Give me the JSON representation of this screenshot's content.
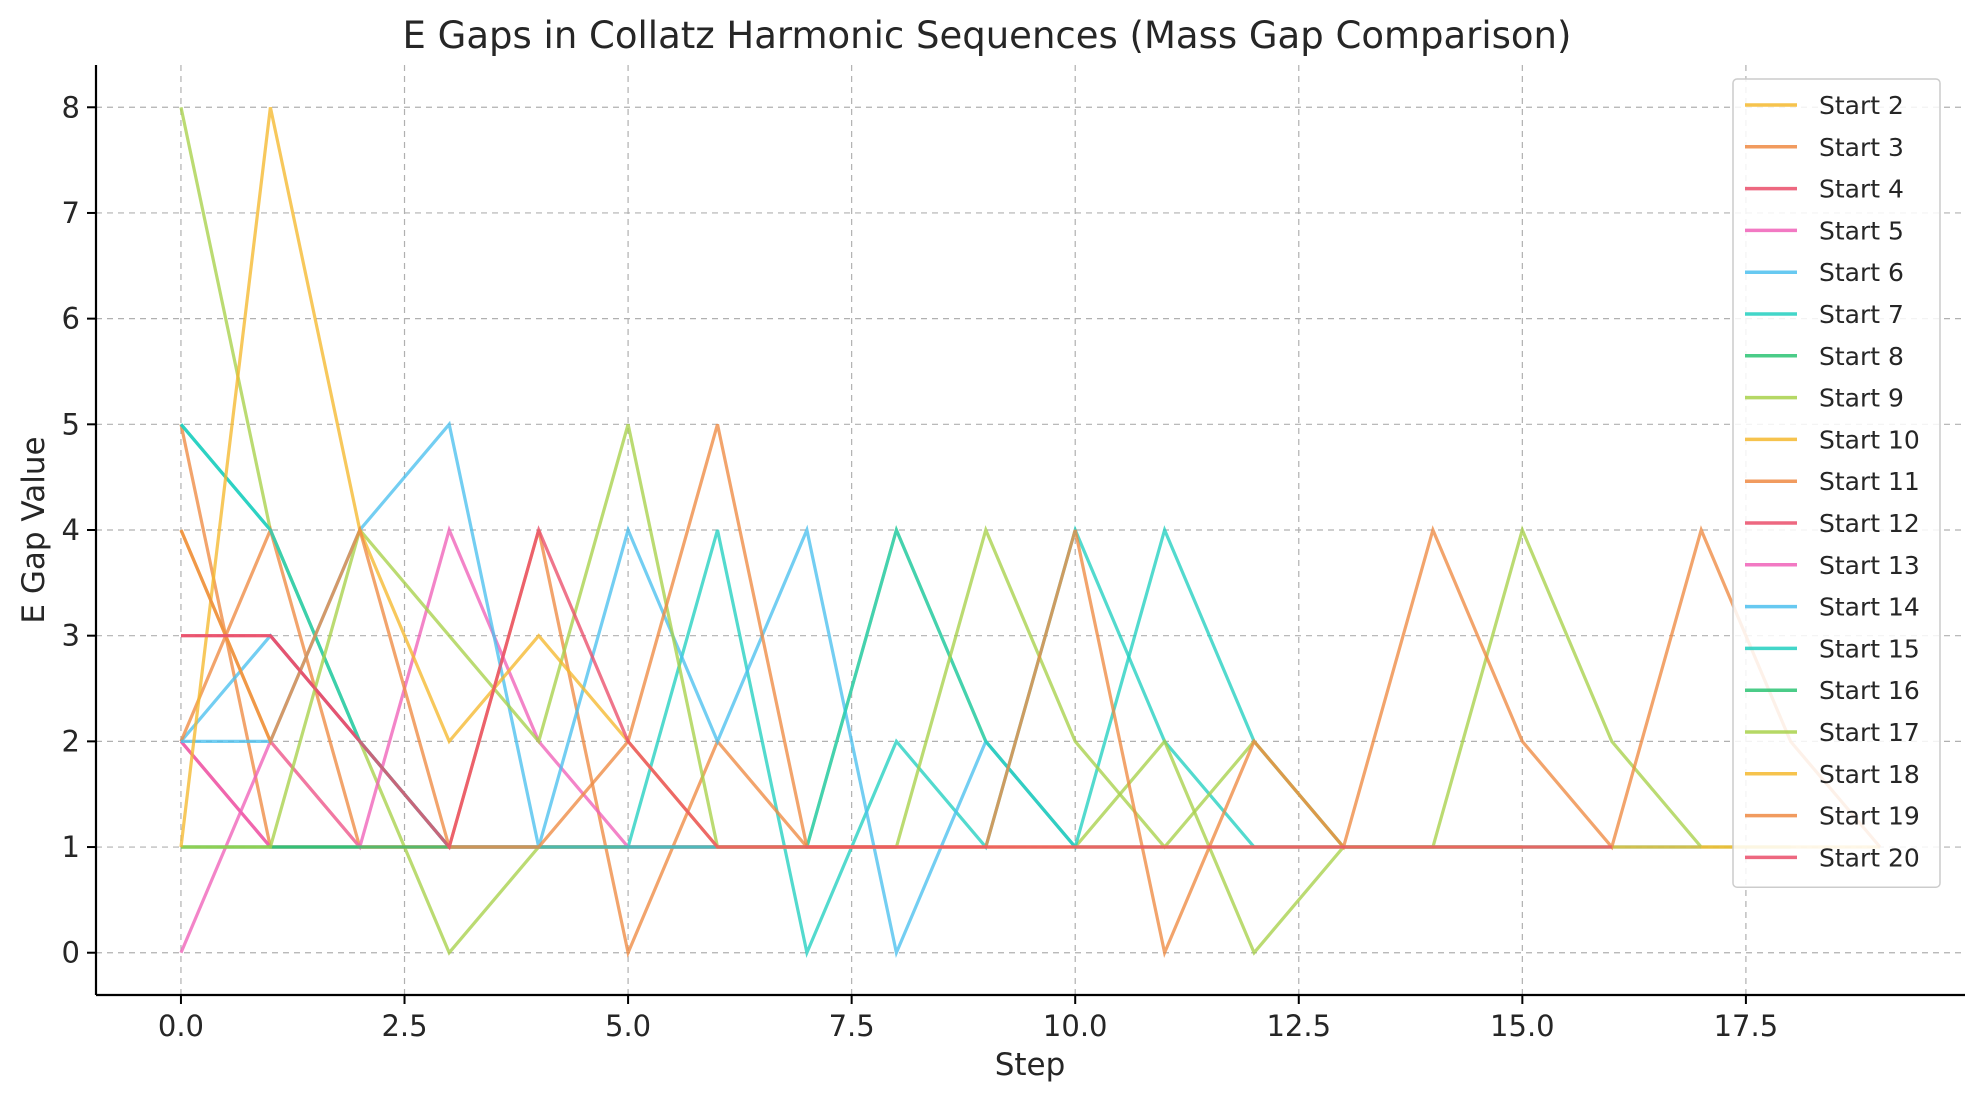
{
  "chart_data": {
    "type": "line",
    "title": "E Gaps in Collatz Harmonic Sequences (Mass Gap Comparison)",
    "xlabel": "Step",
    "ylabel": "E Gap Value",
    "xlim": [
      -0.95,
      19.95
    ],
    "ylim": [
      -0.4,
      8.4
    ],
    "xticks": [
      0,
      2.5,
      5,
      7.5,
      10,
      12.5,
      15,
      17.5
    ],
    "xtick_labels": [
      "0.0",
      "2.5",
      "5.0",
      "7.5",
      "10.0",
      "12.5",
      "15.0",
      "17.5"
    ],
    "yticks": [
      0,
      1,
      2,
      3,
      4,
      5,
      6,
      7,
      8
    ],
    "ytick_labels": [
      "0",
      "1",
      "2",
      "3",
      "4",
      "5",
      "6",
      "7",
      "8"
    ],
    "grid": true,
    "legend_position": "top-right",
    "series": [
      {
        "name": "Start 2",
        "color": "#f5b82e",
        "values": [
          0
        ]
      },
      {
        "name": "Start 3",
        "color": "#ee8a43",
        "values": [
          5,
          1,
          1,
          1,
          1,
          1,
          1
        ]
      },
      {
        "name": "Start 4",
        "color": "#ea4e6a",
        "values": [
          2,
          1
        ]
      },
      {
        "name": "Start 5",
        "color": "#f062b8",
        "values": [
          2,
          1,
          1,
          1
        ]
      },
      {
        "name": "Start 6",
        "color": "#4cc0ee",
        "values": [
          2,
          3,
          2,
          1,
          1,
          1,
          1,
          1
        ]
      },
      {
        "name": "Start 7",
        "color": "#22cfc0",
        "values": [
          5,
          4,
          2,
          1,
          1,
          1,
          4,
          0,
          2,
          1,
          4,
          2,
          1,
          1,
          1,
          1
        ]
      },
      {
        "name": "Start 8",
        "color": "#2cc373",
        "values": [
          1,
          1,
          1
        ]
      },
      {
        "name": "Start 9",
        "color": "#a8d14a",
        "values": [
          8,
          4,
          2,
          0,
          1,
          1,
          1,
          1,
          4,
          2,
          1,
          2,
          0,
          1,
          1,
          4,
          2,
          1,
          1
        ]
      },
      {
        "name": "Start 10",
        "color": "#f5b82e",
        "values": [
          4,
          2,
          1,
          1,
          1,
          1
        ]
      },
      {
        "name": "Start 11",
        "color": "#ee8a43",
        "values": [
          2,
          4,
          1,
          1,
          4,
          0,
          2,
          1,
          1,
          1,
          1,
          1,
          1,
          1
        ]
      },
      {
        "name": "Start 12",
        "color": "#ea4e6a",
        "values": [
          3,
          3,
          2,
          1,
          1,
          1,
          1,
          1,
          1
        ]
      },
      {
        "name": "Start 13",
        "color": "#f062b8",
        "values": [
          0,
          2,
          1,
          4,
          2,
          1,
          1,
          1,
          1
        ]
      },
      {
        "name": "Start 14",
        "color": "#4cc0ee",
        "values": [
          2,
          2,
          4,
          5,
          1,
          4,
          2,
          4,
          0,
          2,
          1,
          1,
          1,
          1,
          1,
          1,
          1
        ]
      },
      {
        "name": "Start 15",
        "color": "#22cfc0",
        "values": [
          5,
          4,
          2,
          1,
          1,
          1,
          1,
          1,
          4,
          2,
          1,
          4,
          2,
          1,
          1,
          1,
          1,
          1
        ]
      },
      {
        "name": "Start 16",
        "color": "#2cc373",
        "values": [
          1,
          1,
          1,
          1
        ]
      },
      {
        "name": "Start 17",
        "color": "#a8d14a",
        "values": [
          1,
          1,
          4,
          3,
          2,
          5,
          1,
          1,
          1,
          4,
          2,
          1,
          2,
          1,
          1,
          1
        ]
      },
      {
        "name": "Start 18",
        "color": "#f5b82e",
        "values": [
          1,
          8,
          4,
          2,
          3,
          2,
          1,
          1,
          1,
          1,
          1,
          1,
          1,
          1,
          1,
          1,
          1,
          1,
          1,
          1
        ]
      },
      {
        "name": "Start 19",
        "color": "#ee8a43",
        "values": [
          4,
          2,
          4,
          1,
          1,
          2,
          5,
          1,
          1,
          1,
          4,
          0,
          2,
          1,
          4,
          2,
          1,
          4,
          2,
          1
        ]
      },
      {
        "name": "Start 20",
        "color": "#ea4e6a",
        "values": [
          3,
          3,
          2,
          1,
          4,
          2,
          1,
          1,
          1,
          1,
          1,
          1,
          1,
          1,
          1,
          1,
          1
        ]
      }
    ]
  }
}
